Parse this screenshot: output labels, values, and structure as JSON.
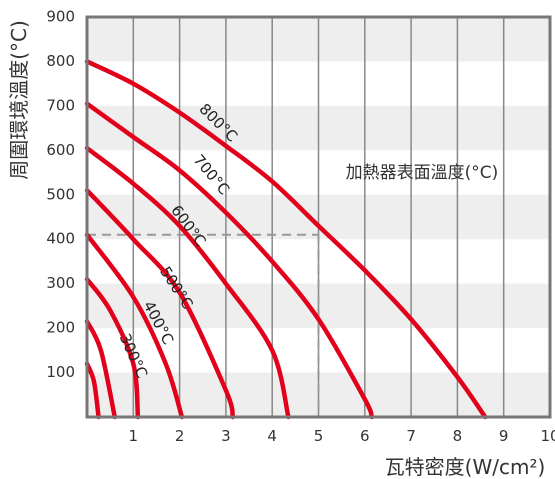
{
  "chart_data": {
    "type": "line",
    "xlabel": "瓦特密度(W/cm²)",
    "ylabel": "周圍環境溫度(°C)",
    "annotation": "加熱器表面溫度(°C)",
    "xlim": [
      0,
      10
    ],
    "ylim": [
      0,
      900
    ],
    "x_ticks": [
      "1",
      "2",
      "3",
      "4",
      "5",
      "6",
      "7",
      "8",
      "9",
      "10"
    ],
    "y_ticks": [
      "100",
      "200",
      "300",
      "400",
      "500",
      "600",
      "700",
      "800",
      "900"
    ],
    "grid": true,
    "colors": {
      "curve": "#e2001a",
      "grid": "#888888",
      "band": "#eeeeee",
      "guide": "#999999"
    },
    "series": [
      {
        "name": "800°C",
        "label": "800°C",
        "points": [
          [
            0,
            800
          ],
          [
            1,
            750
          ],
          [
            2,
            685
          ],
          [
            3,
            610
          ],
          [
            4,
            530
          ],
          [
            5,
            430
          ],
          [
            6,
            330
          ],
          [
            7,
            220
          ],
          [
            8,
            90
          ],
          [
            8.6,
            0
          ]
        ]
      },
      {
        "name": "700°C",
        "label": "700°C",
        "points": [
          [
            0,
            705
          ],
          [
            1,
            630
          ],
          [
            2,
            555
          ],
          [
            3,
            460
          ],
          [
            4,
            350
          ],
          [
            5,
            220
          ],
          [
            6,
            40
          ],
          [
            6.15,
            0
          ]
        ]
      },
      {
        "name": "600°C",
        "label": "600°C",
        "points": [
          [
            0,
            605
          ],
          [
            1,
            525
          ],
          [
            2,
            430
          ],
          [
            3,
            300
          ],
          [
            4,
            150
          ],
          [
            4.35,
            0
          ]
        ]
      },
      {
        "name": "500°C",
        "label": "500°C",
        "points": [
          [
            0,
            510
          ],
          [
            1,
            400
          ],
          [
            2,
            280
          ],
          [
            3,
            60
          ],
          [
            3.15,
            0
          ]
        ]
      },
      {
        "name": "400°C",
        "label": "400°C",
        "points": [
          [
            0,
            410
          ],
          [
            1,
            270
          ],
          [
            1.7,
            120
          ],
          [
            2.05,
            0
          ]
        ]
      },
      {
        "name": "300°C",
        "label": "300°C",
        "points": [
          [
            0,
            310
          ],
          [
            0.5,
            240
          ],
          [
            1,
            120
          ],
          [
            1.1,
            0
          ]
        ]
      },
      {
        "name": "",
        "label": "",
        "points": [
          [
            0,
            215
          ],
          [
            0.3,
            150
          ],
          [
            0.6,
            0
          ]
        ]
      },
      {
        "name": "",
        "label": "",
        "points": [
          [
            0,
            120
          ],
          [
            0.15,
            80
          ],
          [
            0.25,
            0
          ]
        ]
      }
    ],
    "guide_line": {
      "x": 5,
      "y": 410
    }
  }
}
